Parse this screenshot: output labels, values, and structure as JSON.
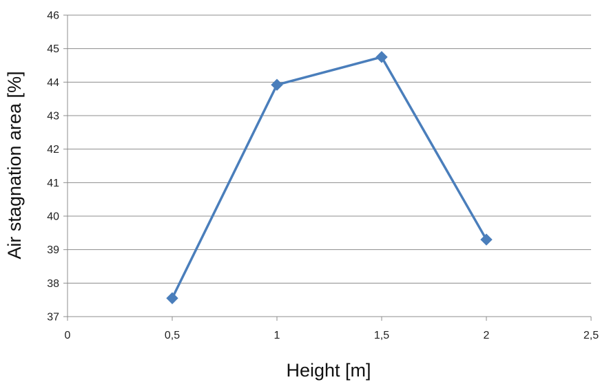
{
  "chart_data": {
    "type": "line",
    "title": "",
    "xlabel": "Height [m]",
    "ylabel": "Air stagnation area [%]",
    "xlim": [
      0,
      2.5
    ],
    "ylim": [
      37,
      46
    ],
    "x_ticks": [
      0,
      0.5,
      1,
      1.5,
      2,
      2.5
    ],
    "x_tick_labels": [
      "0",
      "0,5",
      "1",
      "1,5",
      "2",
      "2,5"
    ],
    "y_ticks": [
      37,
      38,
      39,
      40,
      41,
      42,
      43,
      44,
      45,
      46
    ],
    "y_tick_labels": [
      "37",
      "38",
      "39",
      "40",
      "41",
      "42",
      "43",
      "44",
      "45",
      "46"
    ],
    "grid": {
      "horizontal": true,
      "vertical": false
    },
    "legend": "none",
    "series": [
      {
        "x": [
          0.5,
          1,
          1.5,
          2
        ],
        "values": [
          37.55,
          43.92,
          44.75,
          39.3
        ],
        "color": "#4a7ebb",
        "marker": "diamond"
      }
    ]
  }
}
